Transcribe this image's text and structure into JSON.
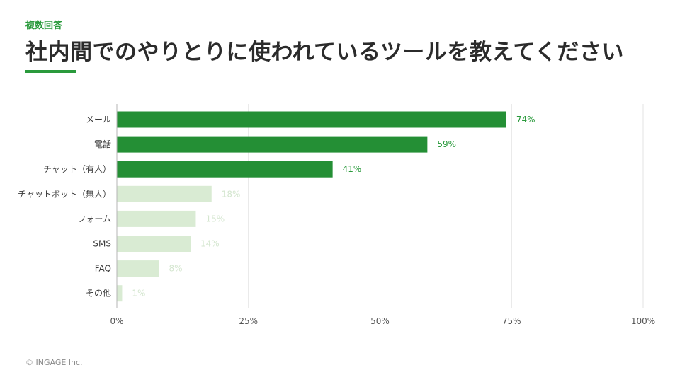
{
  "header": {
    "tag": "複数回答",
    "title": "社内間でのやりとりに使われているツールを教えてください"
  },
  "footer": {
    "copyright": "© INGAGE Inc."
  },
  "colors": {
    "highlight_bar": "#248f35",
    "highlight_label": "#2a9a3c",
    "muted_bar": "#d9ebd3",
    "muted_label": "#d4e6cf",
    "axis_text": "#555555",
    "grid": "#e3e3e3"
  },
  "chart_data": {
    "type": "bar",
    "orientation": "horizontal",
    "categories": [
      "メール",
      "電話",
      "チャット（有人）",
      "チャットボット（無人）",
      "フォーム",
      "SMS",
      "FAQ",
      "その他"
    ],
    "values": [
      74,
      59,
      41,
      18,
      15,
      14,
      8,
      1
    ],
    "value_labels": [
      "74%",
      "59%",
      "41%",
      "18%",
      "15%",
      "14%",
      "8%",
      "1%"
    ],
    "highlighted": [
      true,
      true,
      true,
      false,
      false,
      false,
      false,
      false
    ],
    "xlim": [
      0,
      100
    ],
    "xticks": [
      0,
      25,
      50,
      75,
      100
    ],
    "xtick_labels": [
      "0%",
      "25%",
      "50%",
      "75%",
      "100%"
    ],
    "grid": true,
    "title": "",
    "xlabel": "",
    "ylabel": ""
  }
}
